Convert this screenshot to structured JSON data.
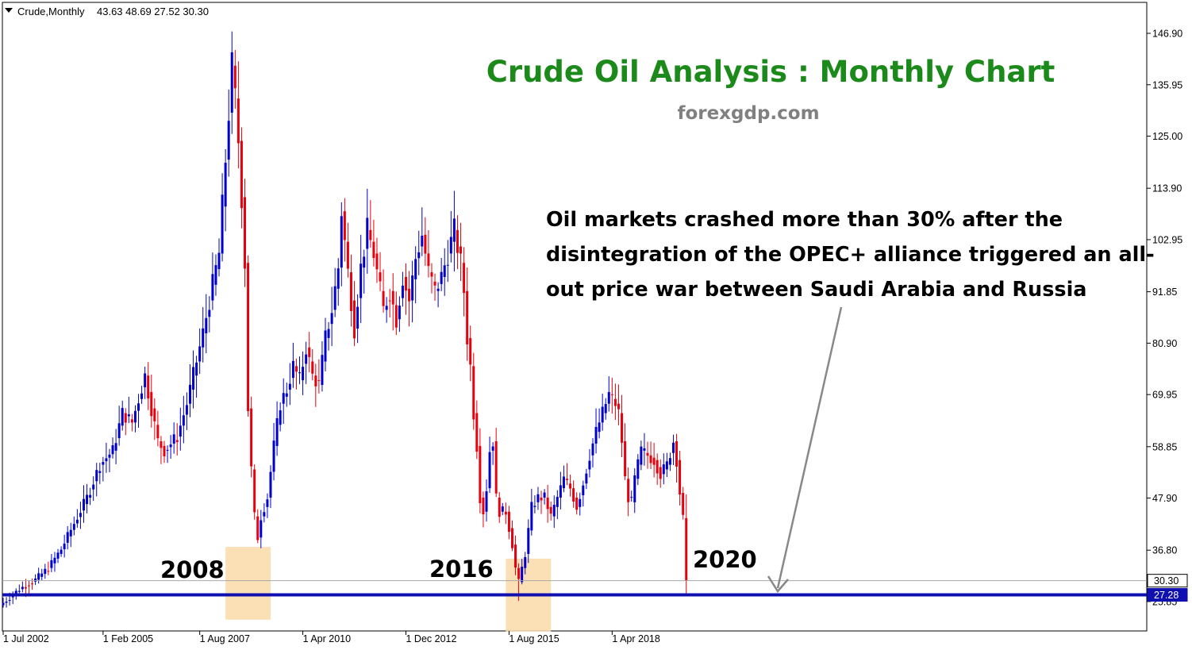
{
  "header": {
    "symbol_label": "Crude,Monthly",
    "ohlc": "43.63 48.69 27.52 30.30"
  },
  "chart_data": {
    "type": "candlestick",
    "symbol": "Crude",
    "timeframe": "Monthly",
    "title": "Crude Oil Analysis : Monthly Chart",
    "subtitle": "forexgdp.com",
    "annotation": {
      "lines": [
        "Oil markets crashed more than 30% after the",
        "disintegration of the OPEC+ alliance triggered an all-",
        "out price war between Saudi Arabia and Russia"
      ]
    },
    "year_labels": [
      "2008",
      "2016",
      "2020"
    ],
    "y_ticks": [
      146.9,
      135.95,
      125.0,
      113.9,
      102.95,
      91.85,
      80.9,
      69.95,
      58.85,
      47.9,
      36.8,
      25.85
    ],
    "y_tick_labels": [
      "146.90",
      "135.95",
      "125.00",
      "113.90",
      "102.95",
      "91.85",
      "80.90",
      "69.95",
      "58.85",
      "47.90",
      "36.80",
      "25.85"
    ],
    "ylim": [
      15.0,
      152.0
    ],
    "x_tick_labels": [
      "1 Jul 2002",
      "1 Feb 2005",
      "1 Aug 2007",
      "1 Apr 2010",
      "1 Dec 2012",
      "1 Aug 2015",
      "1 Apr 2018"
    ],
    "x_tick_months": [
      0,
      31,
      61,
      93,
      125,
      157,
      189
    ],
    "current_price": {
      "value": 30.3,
      "label": "30.30"
    },
    "support_level": {
      "value": 27.28,
      "label": "27.28"
    },
    "highlight_zones": [
      {
        "year": "2008",
        "from_month": 69,
        "to_month": 83,
        "y_low": 22.0,
        "y_high": 37.5
      },
      {
        "year": "2016",
        "from_month": 156,
        "to_month": 170,
        "y_low": 19.5,
        "y_high": 35.0
      }
    ],
    "colors": {
      "bull": "#0000cc",
      "bear": "#e8000d",
      "support": "#1010b0",
      "title": "#1b8a1b",
      "subtitle": "#808080",
      "zone": "#fad9a8",
      "text": "#000000"
    },
    "anchors": [
      [
        0,
        25.6
      ],
      [
        5,
        28.5
      ],
      [
        10,
        30.5
      ],
      [
        14,
        33.0
      ],
      [
        18,
        37.0
      ],
      [
        22,
        42.5
      ],
      [
        26,
        48.0
      ],
      [
        30,
        55.0
      ],
      [
        34,
        58.0
      ],
      [
        37,
        66.0
      ],
      [
        40,
        64.0
      ],
      [
        44,
        74.0
      ],
      [
        48,
        60.0
      ],
      [
        50,
        58.0
      ],
      [
        54,
        61.0
      ],
      [
        57,
        68.0
      ],
      [
        59,
        74.0
      ],
      [
        62,
        83.0
      ],
      [
        64,
        90.0
      ],
      [
        67,
        100.0
      ],
      [
        69,
        120.0
      ],
      [
        71,
        140.0
      ],
      [
        72,
        133.0
      ],
      [
        73,
        124.0
      ],
      [
        74,
        112.0
      ],
      [
        75,
        98.0
      ],
      [
        76,
        67.0
      ],
      [
        77,
        54.0
      ],
      [
        78,
        44.0
      ],
      [
        79,
        39.5
      ],
      [
        80,
        44.0
      ],
      [
        82,
        48.0
      ],
      [
        84,
        59.0
      ],
      [
        86,
        68.0
      ],
      [
        88,
        71.0
      ],
      [
        90,
        76.0
      ],
      [
        92,
        73.0
      ],
      [
        94,
        80.0
      ],
      [
        96,
        74.0
      ],
      [
        98,
        72.0
      ],
      [
        100,
        82.0
      ],
      [
        102,
        88.0
      ],
      [
        104,
        97.0
      ],
      [
        105,
        109.0
      ],
      [
        107,
        96.0
      ],
      [
        109,
        84.0
      ],
      [
        111,
        97.0
      ],
      [
        113,
        105.0
      ],
      [
        115,
        100.0
      ],
      [
        118,
        88.0
      ],
      [
        120,
        92.0
      ],
      [
        122,
        86.0
      ],
      [
        124,
        95.0
      ],
      [
        126,
        90.0
      ],
      [
        128,
        99.0
      ],
      [
        130,
        104.0
      ],
      [
        132,
        96.0
      ],
      [
        134,
        92.0
      ],
      [
        136,
        95.0
      ],
      [
        138,
        100.0
      ],
      [
        140,
        105.0
      ],
      [
        142,
        98.0
      ],
      [
        143,
        92.0
      ],
      [
        144,
        82.0
      ],
      [
        145,
        76.0
      ],
      [
        146,
        66.0
      ],
      [
        147,
        59.0
      ],
      [
        148,
        48.0
      ],
      [
        149,
        45.0
      ],
      [
        150,
        50.0
      ],
      [
        151,
        58.0
      ],
      [
        152,
        60.0
      ],
      [
        153,
        48.0
      ],
      [
        154,
        45.0
      ],
      [
        156,
        45.0
      ],
      [
        158,
        38.0
      ],
      [
        159,
        33.0
      ],
      [
        160,
        30.0
      ],
      [
        162,
        36.0
      ],
      [
        164,
        46.0
      ],
      [
        166,
        48.0
      ],
      [
        168,
        48.0
      ],
      [
        170,
        44.0
      ],
      [
        172,
        48.0
      ],
      [
        174,
        52.0
      ],
      [
        176,
        50.0
      ],
      [
        178,
        46.0
      ],
      [
        180,
        51.0
      ],
      [
        182,
        57.0
      ],
      [
        184,
        62.0
      ],
      [
        186,
        66.0
      ],
      [
        188,
        70.0
      ],
      [
        190,
        68.0
      ],
      [
        191,
        66.0
      ],
      [
        192,
        60.0
      ],
      [
        193,
        52.0
      ],
      [
        194,
        48.0
      ],
      [
        195,
        47.0
      ],
      [
        196,
        52.0
      ],
      [
        198,
        58.0
      ],
      [
        200,
        57.0
      ],
      [
        202,
        56.0
      ],
      [
        204,
        53.0
      ],
      [
        206,
        55.0
      ],
      [
        208,
        60.0
      ],
      [
        209,
        56.0
      ],
      [
        210,
        49.0
      ],
      [
        211,
        43.5
      ],
      [
        212,
        30.3
      ]
    ]
  }
}
